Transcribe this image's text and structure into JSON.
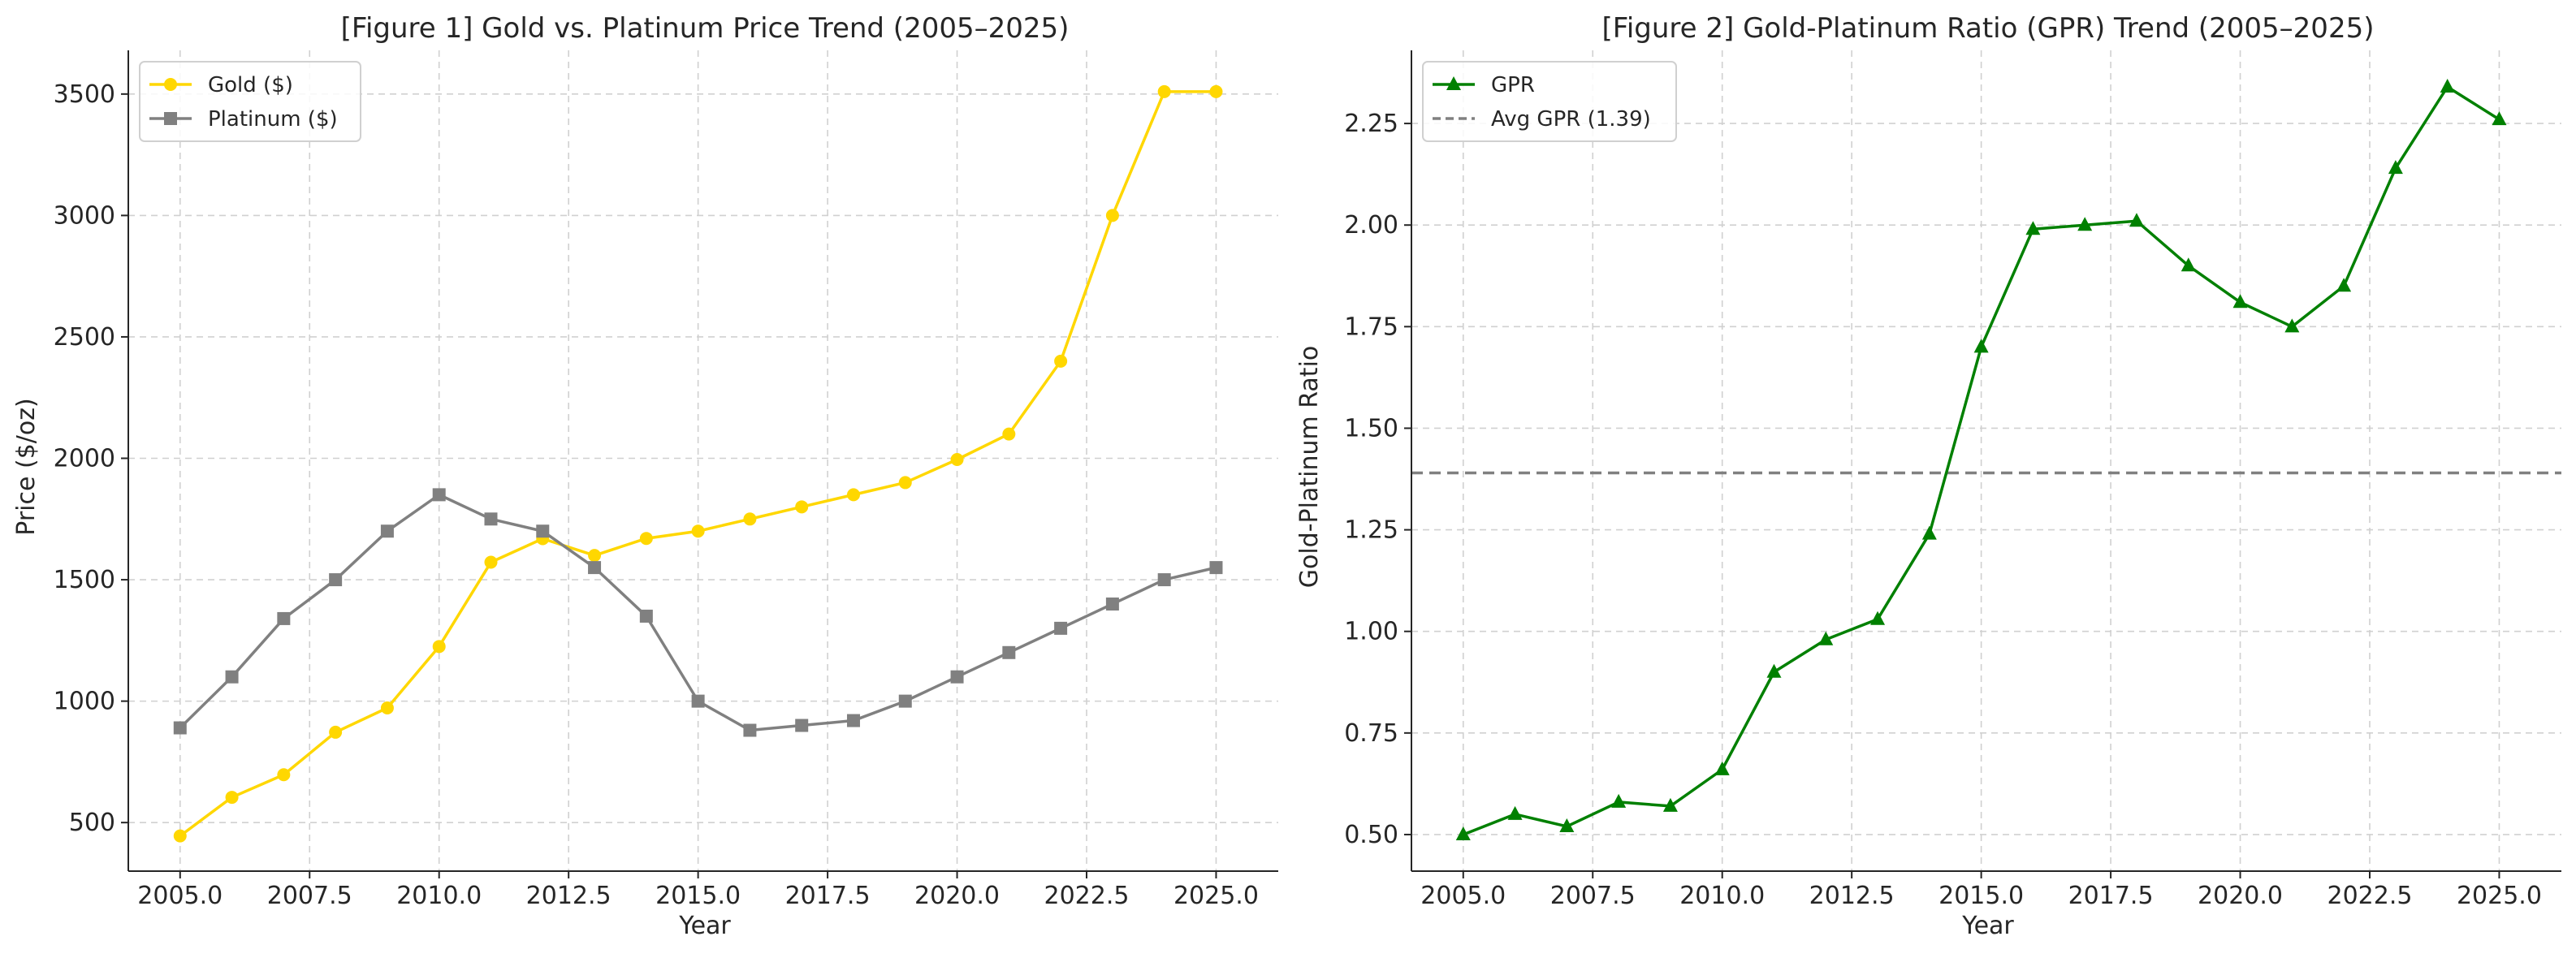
{
  "chart_data": [
    {
      "type": "line",
      "title": "[Figure 1] Gold vs. Platinum Price Trend (2005–2025)",
      "xlabel": "Year",
      "ylabel": "Price ($/oz)",
      "xlim": [
        2004,
        2026.2
      ],
      "ylim": [
        300,
        3680
      ],
      "xticks": [
        2005.0,
        2007.5,
        2010.0,
        2012.5,
        2015.0,
        2017.5,
        2020.0,
        2022.5,
        2025.0
      ],
      "xtick_labels": [
        "2005.0",
        "2007.5",
        "2010.0",
        "2012.5",
        "2015.0",
        "2017.5",
        "2020.0",
        "2022.5",
        "2025.0"
      ],
      "yticks": [
        500,
        1000,
        1500,
        2000,
        2500,
        3000,
        3500
      ],
      "ytick_labels": [
        "500",
        "1000",
        "1500",
        "2000",
        "2500",
        "3000",
        "3500"
      ],
      "grid": true,
      "legend_position": "top-left",
      "x": [
        2005,
        2006,
        2007,
        2008,
        2009,
        2010,
        2011,
        2012,
        2013,
        2014,
        2015,
        2016,
        2017,
        2018,
        2019,
        2020,
        2021,
        2022,
        2023,
        2024,
        2025
      ],
      "series": [
        {
          "name": "Gold ($)",
          "color": "#FFD700",
          "marker": "circle",
          "values": [
            445,
            604,
            697,
            872,
            972,
            1225,
            1572,
            1669,
            1600,
            1670,
            1700,
            1750,
            1800,
            1850,
            1900,
            1995,
            2100,
            2400,
            3000,
            3510,
            3510
          ]
        },
        {
          "name": "Platinum ($)",
          "color": "#808080",
          "marker": "square",
          "values": [
            890,
            1100,
            1340,
            1500,
            1700,
            1850,
            1750,
            1700,
            1550,
            1350,
            1000,
            880,
            900,
            920,
            1000,
            1100,
            1200,
            1300,
            1400,
            1500,
            1550
          ]
        }
      ]
    },
    {
      "type": "line",
      "title": "[Figure 2] Gold-Platinum Ratio (GPR) Trend (2005–2025)",
      "xlabel": "Year",
      "ylabel": "Gold-Platinum Ratio",
      "xlim": [
        2004,
        2026.2
      ],
      "ylim": [
        0.41,
        2.43
      ],
      "xticks": [
        2005.0,
        2007.5,
        2010.0,
        2012.5,
        2015.0,
        2017.5,
        2020.0,
        2022.5,
        2025.0
      ],
      "xtick_labels": [
        "2005.0",
        "2007.5",
        "2010.0",
        "2012.5",
        "2015.0",
        "2017.5",
        "2020.0",
        "2022.5",
        "2025.0"
      ],
      "yticks": [
        0.5,
        0.75,
        1.0,
        1.25,
        1.5,
        1.75,
        2.0,
        2.25
      ],
      "ytick_labels": [
        "0.50",
        "0.75",
        "1.00",
        "1.25",
        "1.50",
        "1.75",
        "2.00",
        "2.25"
      ],
      "grid": true,
      "legend_position": "top-left",
      "x": [
        2005,
        2006,
        2007,
        2008,
        2009,
        2010,
        2011,
        2012,
        2013,
        2014,
        2015,
        2016,
        2017,
        2018,
        2019,
        2020,
        2021,
        2022,
        2023,
        2024,
        2025
      ],
      "series": [
        {
          "name": "GPR",
          "color": "#008000",
          "marker": "triangle",
          "values": [
            0.5,
            0.55,
            0.52,
            0.58,
            0.57,
            0.66,
            0.9,
            0.98,
            1.03,
            1.24,
            1.7,
            1.99,
            2.0,
            2.01,
            1.9,
            1.81,
            1.75,
            1.85,
            2.14,
            2.34,
            2.26
          ]
        }
      ],
      "reference_lines": [
        {
          "name": "Avg GPR (1.39)",
          "y": 1.39,
          "color": "#808080",
          "style": "dashed"
        }
      ]
    }
  ]
}
